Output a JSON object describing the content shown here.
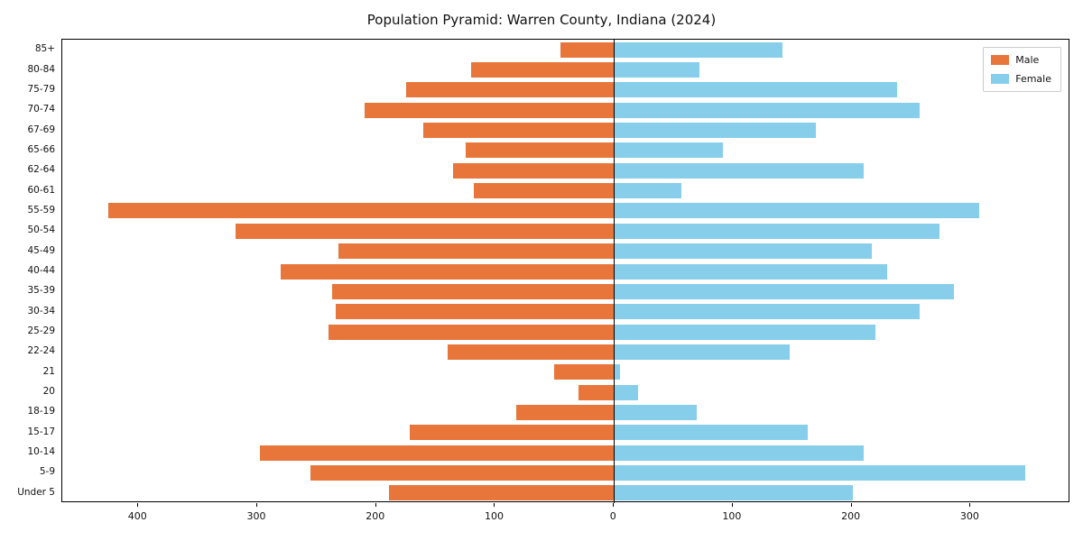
{
  "title": "Population Pyramid: Warren County, Indiana (2024)",
  "legend": {
    "male_label": "Male",
    "female_label": "Female"
  },
  "colors": {
    "male": "#e8763a",
    "female": "#87ceeb",
    "axis": "#000000",
    "background": "#ffffff"
  },
  "chart_data": {
    "type": "bar",
    "orientation": "horizontal-pyramid",
    "title": "Population Pyramid: Warren County, Indiana (2024)",
    "xlabel": "",
    "ylabel": "",
    "grid": false,
    "legend_position": "upper right",
    "xlim": [
      -464,
      384
    ],
    "xticks": [
      -400,
      -300,
      -200,
      -100,
      0,
      100,
      200,
      300
    ],
    "xtick_labels": [
      "400",
      "300",
      "200",
      "100",
      "0",
      "100",
      "200",
      "300"
    ],
    "categories_top_to_bottom": [
      "85+",
      "80-84",
      "75-79",
      "70-74",
      "67-69",
      "65-66",
      "62-64",
      "60-61",
      "55-59",
      "50-54",
      "45-49",
      "40-44",
      "35-39",
      "30-34",
      "25-29",
      "22-24",
      "21",
      "20",
      "18-19",
      "15-17",
      "10-14",
      "5-9",
      "Under 5"
    ],
    "series": [
      {
        "name": "Male",
        "side": "left",
        "values": [
          45,
          120,
          175,
          210,
          160,
          125,
          135,
          118,
          425,
          318,
          232,
          280,
          237,
          234,
          240,
          140,
          50,
          30,
          82,
          172,
          298,
          255,
          189
        ]
      },
      {
        "name": "Female",
        "side": "right",
        "values": [
          142,
          72,
          238,
          257,
          170,
          92,
          210,
          57,
          307,
          274,
          217,
          230,
          286,
          257,
          220,
          148,
          5,
          20,
          70,
          163,
          210,
          346,
          201
        ]
      }
    ]
  }
}
